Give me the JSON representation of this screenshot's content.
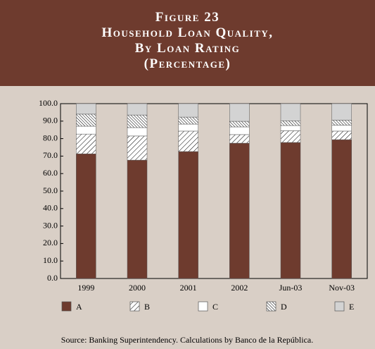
{
  "header": {
    "title_lines": [
      "Figure 23",
      "Household Loan Quality,",
      "By Loan Rating",
      "(Percentage)"
    ]
  },
  "chart_data": {
    "type": "stacked_bar",
    "categories": [
      "1999",
      "2000",
      "2001",
      "2002",
      "Jun-03",
      "Nov-03"
    ],
    "series": [
      {
        "name": "A",
        "color": "#6e3b2e",
        "pattern": "solid",
        "values": [
          71.3,
          67.7,
          72.6,
          77.4,
          77.8,
          79.4
        ]
      },
      {
        "name": "B",
        "color": "#ffffff",
        "pattern": "forward-hatch",
        "values": [
          11.3,
          13.8,
          11.7,
          4.9,
          6.7,
          4.9
        ]
      },
      {
        "name": "C",
        "color": "#ffffff",
        "pattern": "solid",
        "values": [
          4.5,
          4.8,
          4.0,
          4.4,
          3.0,
          3.4
        ]
      },
      {
        "name": "D",
        "color": "#ffffff",
        "pattern": "back-hatch",
        "values": [
          6.9,
          7.2,
          4.0,
          3.2,
          2.7,
          2.8
        ]
      },
      {
        "name": "E",
        "color": "#d3d3d3",
        "pattern": "solid",
        "values": [
          6.0,
          6.5,
          7.7,
          10.1,
          9.8,
          9.5
        ]
      }
    ],
    "ylim": [
      0,
      100
    ],
    "yticks": [
      {
        "value": 0,
        "label": "0.0"
      },
      {
        "value": 10,
        "label": "10.0"
      },
      {
        "value": 20,
        "label": "20.0"
      },
      {
        "value": 30,
        "label": "30.0"
      },
      {
        "value": 40,
        "label": "40.0"
      },
      {
        "value": 50,
        "label": "50.0"
      },
      {
        "value": 60,
        "label": "60.0"
      },
      {
        "value": 70,
        "label": "70.0"
      },
      {
        "value": 80,
        "label": "80.0"
      },
      {
        "value": 90,
        "label": "90.0"
      },
      {
        "value": 100,
        "label": "100.0"
      }
    ],
    "legend": "bottom",
    "source": "Source: Banking Superintendency.  Calculations by Banco de la República."
  }
}
